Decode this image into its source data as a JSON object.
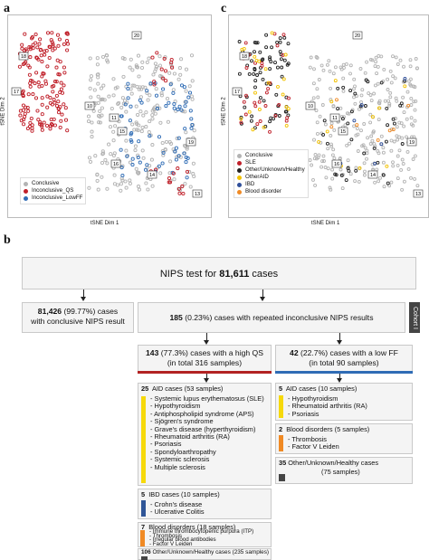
{
  "panels": {
    "a": "a",
    "c": "c",
    "b": "b"
  },
  "tsne_a": {
    "xlabel": "tSNE Dim 1",
    "ylabel": "tSNE Dim 2",
    "legend": [
      {
        "label": "Conclusive",
        "color": "#b3b3b3"
      },
      {
        "label": "Inconclusive_QS",
        "color": "#c0202a"
      },
      {
        "label": "Inconclusive_LowFF",
        "color": "#2f6cb5"
      }
    ],
    "callouts": [
      "20",
      "18",
      "17",
      "10",
      "11",
      "15",
      "19",
      "16",
      "14",
      "13"
    ]
  },
  "tsne_c": {
    "xlabel": "tSNE Dim 1",
    "ylabel": "tSNE Dim 2",
    "legend": [
      {
        "label": "Conclusive",
        "color": "#b3b3b3"
      },
      {
        "label": "SLE",
        "color": "#c0202a"
      },
      {
        "label": "Other/Unknown/Healthy",
        "color": "#222222"
      },
      {
        "label": "OtherAID",
        "color": "#f2c200"
      },
      {
        "label": "IBD",
        "color": "#2f4f9a"
      },
      {
        "label": "Blood disorder",
        "color": "#f08a24"
      }
    ],
    "callouts": [
      "20",
      "18",
      "17",
      "10",
      "11",
      "15",
      "19",
      "16",
      "14",
      "13"
    ]
  },
  "flow": {
    "top": {
      "prefix": "NIPS test for ",
      "count": "81,611",
      "suffix": " cases"
    },
    "conclusive": {
      "count": "81,426",
      "line1": " (99.77%) cases",
      "line2": "with conclusive NIPS result"
    },
    "repeated": {
      "count": "185",
      "text": " (0.23%) cases with repeated inconclusive NIPS results"
    },
    "cohort": "Cohort I",
    "high_qs": {
      "count": "143",
      "line1": " (77.3%) cases with a high QS",
      "line2": "(in total 316 samples)"
    },
    "low_ff": {
      "count": "42",
      "line1": " (22.7%) cases with a low FF",
      "line2": "(in total 90 samples)"
    },
    "qs_groups": [
      {
        "count": "25",
        "title": "AID cases (53 samples)",
        "color": "#f6d90b",
        "items": [
          "- Systemic lupus erythematosus (SLE)",
          "- Hypothyroidism",
          "- Antiphospholipid syndrome (APS)",
          "- Sjögren's syndrome",
          "- Grave's disease (hyperthyroidism)",
          "- Rheumatoid arthritis (RA)",
          "- Psoriasis",
          "- Spondyloarthropathy",
          "- Systemic sclerosis",
          "- Multiple sclerosis"
        ]
      },
      {
        "count": "5",
        "title": "IBD cases (10 samples)",
        "color": "#2f5597",
        "items": [
          "- Crohn's disease",
          "- Ulcerative Colitis"
        ]
      },
      {
        "count": "7",
        "title": "Blood disorders (18 samples)",
        "color": "#f08a24",
        "items": [
          "- Immune thrombocytopenic purpura (ITP)",
          "- Thrombosis",
          "- Irregular blood antibodies",
          "- Factor V Leiden"
        ]
      },
      {
        "count": "106",
        "title": "Other/Unknown/Healthy cases",
        "subtitle": "(235 samples)",
        "color": "#444444"
      }
    ],
    "ff_groups": [
      {
        "count": "5",
        "title": "AID cases (10 samples)",
        "color": "#f6d90b",
        "items": [
          "- Hypothyroidism",
          "- Rheumatoid arthritis (RA)",
          "- Psoriasis"
        ]
      },
      {
        "count": "2",
        "title": "Blood disorders (5 samples)",
        "color": "#f08a24",
        "items": [
          "- Thrombosis",
          "- Factor V Leiden"
        ]
      },
      {
        "count": "35",
        "title": "Other/Unknown/Healthy cases",
        "subtitle": "(75 samples)",
        "color": "#444444"
      }
    ],
    "qs_line_color": "#b22222",
    "ff_line_color": "#2f6cb5"
  }
}
